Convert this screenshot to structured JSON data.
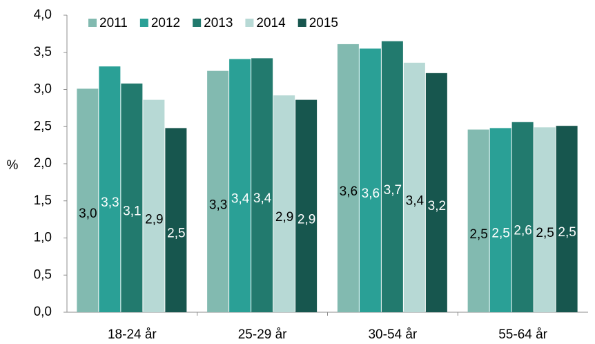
{
  "chart_data": {
    "type": "bar",
    "y_label": "%",
    "categories": [
      "18-24 år",
      "25-29 år",
      "30-54 år",
      "55-64 år"
    ],
    "series": [
      {
        "name": "2011",
        "color": "#82bab0",
        "values": [
          3.01,
          3.25,
          3.61,
          2.46
        ],
        "value_labels": [
          "3,0",
          "3,3",
          "3,6",
          "2,5"
        ]
      },
      {
        "name": "2012",
        "color": "#2aa096",
        "values": [
          3.31,
          3.41,
          3.55,
          2.48
        ],
        "value_labels": [
          "3,3",
          "3,4",
          "3,6",
          "2,5"
        ]
      },
      {
        "name": "2013",
        "color": "#227a6e",
        "values": [
          3.08,
          3.42,
          3.65,
          2.56
        ],
        "value_labels": [
          "3,1",
          "3,4",
          "3,7",
          "2,6"
        ]
      },
      {
        "name": "2014",
        "color": "#b7d9d5",
        "values": [
          2.86,
          2.92,
          3.36,
          2.49
        ],
        "value_labels": [
          "2,9",
          "2,9",
          "3,4",
          "2,5"
        ]
      },
      {
        "name": "2015",
        "color": "#17564e",
        "values": [
          2.48,
          2.86,
          3.22,
          2.51
        ],
        "value_labels": [
          "2,5",
          "2,9",
          "3,2",
          "2,5"
        ]
      }
    ],
    "ylim": [
      0,
      4
    ],
    "yticks": [
      {
        "value": 0,
        "label": "0,0"
      },
      {
        "value": 0.5,
        "label": "0,5"
      },
      {
        "value": 1,
        "label": "1,0"
      },
      {
        "value": 1.5,
        "label": "1,5"
      },
      {
        "value": 2,
        "label": "2,0"
      },
      {
        "value": 2.5,
        "label": "2,5"
      },
      {
        "value": 3,
        "label": "3,0"
      },
      {
        "value": 3.5,
        "label": "3,5"
      },
      {
        "value": 4,
        "label": "4,0"
      }
    ],
    "legend": "top-left",
    "grid": false
  }
}
